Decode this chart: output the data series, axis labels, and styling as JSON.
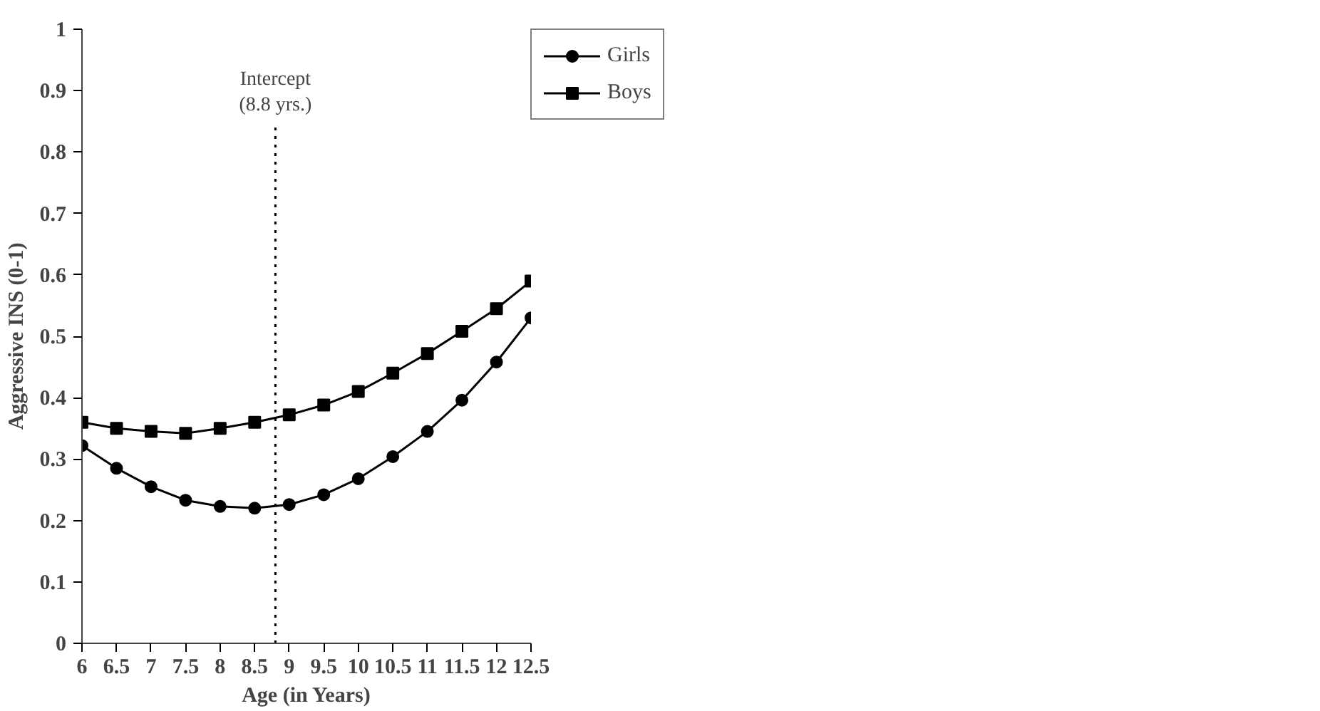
{
  "chart_data": {
    "type": "line",
    "xlabel": "Age (in Years)",
    "ylabel": "Aggressive INS (0-1)",
    "x": [
      6,
      6.5,
      7,
      7.5,
      8,
      8.5,
      9,
      9.5,
      10,
      10.5,
      11,
      11.5,
      12,
      12.5
    ],
    "series": [
      {
        "name": "Girls",
        "color": "#000000",
        "marker": "circle",
        "values": [
          0.322,
          0.285,
          0.255,
          0.233,
          0.223,
          0.22,
          0.226,
          0.242,
          0.268,
          0.304,
          0.345,
          0.396,
          0.458,
          0.53
        ]
      },
      {
        "name": "Boys",
        "color": "#000000",
        "marker": "square",
        "values": [
          0.36,
          0.35,
          0.345,
          0.342,
          0.35,
          0.36,
          0.372,
          0.388,
          0.41,
          0.44,
          0.472,
          0.508,
          0.545,
          0.59
        ]
      }
    ],
    "xlim": [
      6,
      12.5
    ],
    "xticks": [
      6,
      6.5,
      7,
      7.5,
      8,
      8.5,
      9,
      9.5,
      10,
      10.5,
      11,
      11.5,
      12,
      12.5
    ],
    "ylim": [
      0,
      1
    ],
    "yticks": [
      0,
      0.1,
      0.2,
      0.3,
      0.4,
      0.5,
      0.6,
      0.7,
      0.8,
      0.9,
      1
    ],
    "ref_lines": [
      {
        "axis": "x",
        "value": 8.8,
        "label": "Intercept\n(8.8 yrs.)",
        "line_style": "dotted"
      }
    ],
    "grid": false,
    "legend": "top right",
    "line_style": "solid"
  }
}
